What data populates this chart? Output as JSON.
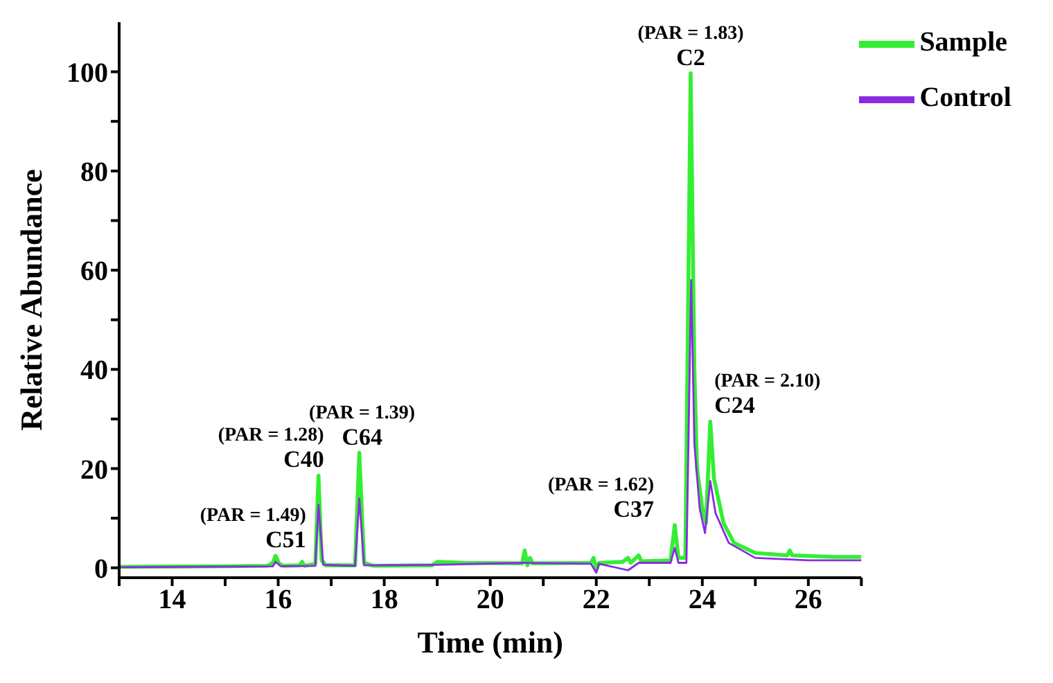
{
  "chart_data": {
    "type": "line",
    "xlabel": "Time (min)",
    "ylabel": "Relative Abundance",
    "xlim": [
      13,
      27
    ],
    "ylim": [
      -2,
      110
    ],
    "xticks": [
      {
        "value": 13,
        "label": null
      },
      14,
      {
        "value": 15,
        "label": null
      },
      16,
      {
        "value": 17,
        "label": null
      },
      18,
      {
        "value": 19,
        "label": null
      },
      20,
      {
        "value": 21,
        "label": null
      },
      22,
      {
        "value": 23,
        "label": null
      },
      24,
      {
        "value": 25,
        "label": null
      },
      26,
      {
        "value": 27,
        "label": null
      }
    ],
    "yticks": [
      0,
      {
        "value": 10,
        "label": null
      },
      20,
      {
        "value": 30,
        "label": null
      },
      40,
      {
        "value": 50,
        "label": null
      },
      60,
      {
        "value": 70,
        "label": null
      },
      80,
      {
        "value": 90,
        "label": null
      },
      100
    ],
    "grid": false,
    "legend": "top right",
    "marker": "none",
    "line_style": "solid",
    "series": [
      {
        "name": "Sample",
        "color": "#33ee33",
        "x": [
          13,
          15,
          15.8,
          15.9,
          15.95,
          16.02,
          16.1,
          16.4,
          16.45,
          16.5,
          16.7,
          16.76,
          16.82,
          16.9,
          17.45,
          17.53,
          17.62,
          17.8,
          18.9,
          19,
          19.5,
          20.6,
          20.65,
          20.7,
          20.75,
          20.8,
          21.9,
          21.95,
          22,
          22.05,
          22.5,
          22.6,
          22.65,
          22.8,
          22.85,
          23.4,
          23.48,
          23.55,
          23.68,
          23.78,
          23.85,
          23.9,
          24,
          24.07,
          24.15,
          24.22,
          24.4,
          24.6,
          25,
          25.6,
          25.65,
          25.7,
          26.5,
          27
        ],
        "values": [
          0.2,
          0.3,
          0.4,
          1,
          2.4,
          0.8,
          0.4,
          0.5,
          1.2,
          0.4,
          0.8,
          18.6,
          1.5,
          0.5,
          0.5,
          23.2,
          1,
          0.4,
          0.5,
          1.2,
          1,
          0.9,
          3.5,
          0.5,
          2,
          0.9,
          1,
          2,
          -0.5,
          1,
          1.2,
          2,
          1,
          2.5,
          1.3,
          1.5,
          8.6,
          2,
          2,
          99.7,
          40,
          20,
          12,
          9,
          29.5,
          18,
          9,
          5,
          3,
          2.5,
          3.5,
          2.5,
          2.2,
          2.2
        ]
      },
      {
        "name": "Control",
        "color": "#8a2be2",
        "x": [
          13,
          15.9,
          15.95,
          16.05,
          16.7,
          16.76,
          16.85,
          17.45,
          17.53,
          17.62,
          19,
          20.65,
          21.9,
          22,
          22.05,
          22.6,
          22.8,
          23.4,
          23.48,
          23.55,
          23.7,
          23.79,
          23.85,
          23.95,
          24.05,
          24.15,
          24.25,
          24.5,
          25,
          26,
          27
        ],
        "values": [
          0.1,
          0.3,
          1.2,
          0.3,
          0.4,
          12.7,
          0.6,
          0.4,
          14,
          0.5,
          0.6,
          1,
          0.8,
          -1,
          0.8,
          -0.5,
          1,
          1,
          4,
          1,
          1,
          58,
          25,
          12,
          7,
          17.5,
          11,
          5,
          2,
          1.5,
          1.5
        ]
      }
    ],
    "annotations": [
      {
        "text": "C51",
        "x": 15.95,
        "y": 2.4
      },
      {
        "text": "(PAR = 1.49)",
        "x": 15.95,
        "y": 2.4
      },
      {
        "text": "C40",
        "x": 16.76,
        "y": 18.6
      },
      {
        "text": "(PAR = 1.28)",
        "x": 16.76,
        "y": 18.6
      },
      {
        "text": "C64",
        "x": 17.53,
        "y": 23.2
      },
      {
        "text": "(PAR = 1.39)",
        "x": 17.53,
        "y": 23.2
      },
      {
        "text": "C37",
        "x": 23.48,
        "y": 8.6
      },
      {
        "text": "(PAR = 1.62)",
        "x": 23.48,
        "y": 8.6
      },
      {
        "text": "C2",
        "x": 23.78,
        "y": 99.7
      },
      {
        "text": "(PAR = 1.83)",
        "x": 23.78,
        "y": 99.7
      },
      {
        "text": "C24",
        "x": 24.15,
        "y": 29.5
      },
      {
        "text": "(PAR = 2.10)",
        "x": 24.15,
        "y": 29.5
      }
    ]
  }
}
